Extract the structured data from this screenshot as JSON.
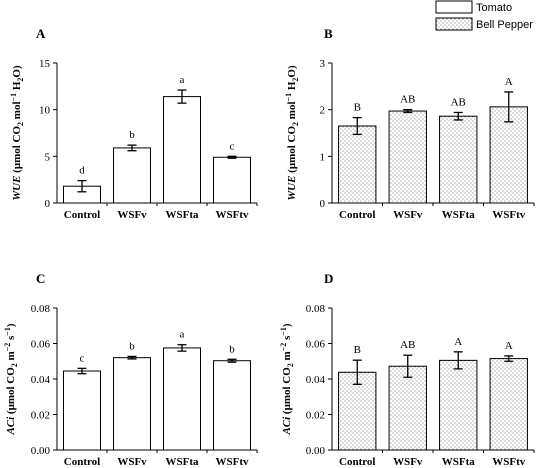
{
  "legend": {
    "items": [
      {
        "label": "Tomato",
        "fill": "white"
      },
      {
        "label": "Bell Pepper",
        "fill": "dots"
      }
    ]
  },
  "chart_data": [
    {
      "panel": "A",
      "type": "bar",
      "categories": [
        "Control",
        "WSFv",
        "WSFta",
        "WSFtv"
      ],
      "values": [
        1.8,
        5.9,
        11.4,
        4.9
      ],
      "errors": [
        0.6,
        0.3,
        0.7,
        0.1
      ],
      "letters": [
        "d",
        "b",
        "a",
        "c"
      ],
      "ylabel_html": "WUE (μmol CO₂ mol⁻¹ H₂O)",
      "ylabel_italic": "WUE",
      "ylabel_rest": " (μmol CO",
      "ylabel_parts": [
        [
          "WUE",
          "i"
        ],
        [
          " (μmol CO",
          "n"
        ],
        [
          "2",
          "sub"
        ],
        [
          " mol",
          "n"
        ],
        [
          "−1",
          "sup"
        ],
        [
          " H",
          "n"
        ],
        [
          "2",
          "sub"
        ],
        [
          "O)",
          "n"
        ]
      ],
      "ylim": [
        0,
        15
      ],
      "yticks": [
        "0",
        "5",
        "10",
        "15"
      ],
      "fill": "white"
    },
    {
      "panel": "B",
      "type": "bar",
      "categories": [
        "Control",
        "WSFv",
        "WSFta",
        "WSFtv"
      ],
      "values": [
        1.65,
        1.97,
        1.86,
        2.06
      ],
      "errors": [
        0.18,
        0.03,
        0.08,
        0.32
      ],
      "letters": [
        "B",
        "AB",
        "AB",
        "A"
      ],
      "ylabel_parts": [
        [
          "WUE",
          "i"
        ],
        [
          " (μmol CO",
          "n"
        ],
        [
          "2",
          "sub"
        ],
        [
          " mol",
          "n"
        ],
        [
          "−1",
          "sup"
        ],
        [
          " H",
          "n"
        ],
        [
          "2",
          "sub"
        ],
        [
          "O)",
          "n"
        ]
      ],
      "ylim": [
        0,
        3
      ],
      "yticks": [
        "0",
        "1",
        "2",
        "3"
      ],
      "fill": "dots"
    },
    {
      "panel": "C",
      "type": "bar",
      "categories": [
        "Control",
        "WSFv",
        "WSFta",
        "WSFtv"
      ],
      "values": [
        0.0445,
        0.052,
        0.0575,
        0.0503
      ],
      "errors": [
        0.0015,
        0.0007,
        0.0018,
        0.0008
      ],
      "letters": [
        "c",
        "b",
        "a",
        "b"
      ],
      "ylabel_parts": [
        [
          "ACi",
          "i"
        ],
        [
          " (μmol CO",
          "n"
        ],
        [
          "2",
          "sub"
        ],
        [
          " m",
          "n"
        ],
        [
          "−2",
          "sup"
        ],
        [
          " s",
          "n"
        ],
        [
          "−1",
          "sup"
        ],
        [
          ")",
          "n"
        ]
      ],
      "ylim": [
        0,
        0.08
      ],
      "yticks": [
        "0.00",
        "0.02",
        "0.04",
        "0.06",
        "0.08"
      ],
      "fill": "white"
    },
    {
      "panel": "D",
      "type": "bar",
      "categories": [
        "Control",
        "WSFv",
        "WSFta",
        "WSFtv"
      ],
      "values": [
        0.0438,
        0.0472,
        0.0505,
        0.0515
      ],
      "errors": [
        0.0068,
        0.0062,
        0.0048,
        0.0015
      ],
      "letters": [
        "B",
        "AB",
        "A",
        "A"
      ],
      "ylabel_parts": [
        [
          "ACi",
          "i"
        ],
        [
          " (μmol CO",
          "n"
        ],
        [
          "2",
          "sub"
        ],
        [
          " m",
          "n"
        ],
        [
          "−2",
          "sup"
        ],
        [
          " s",
          "n"
        ],
        [
          "−1",
          "sup"
        ],
        [
          ")",
          "n"
        ]
      ],
      "ylim": [
        0,
        0.08
      ],
      "yticks": [
        "0.00",
        "0.02",
        "0.04",
        "0.06",
        "0.08"
      ],
      "fill": "dots"
    }
  ]
}
